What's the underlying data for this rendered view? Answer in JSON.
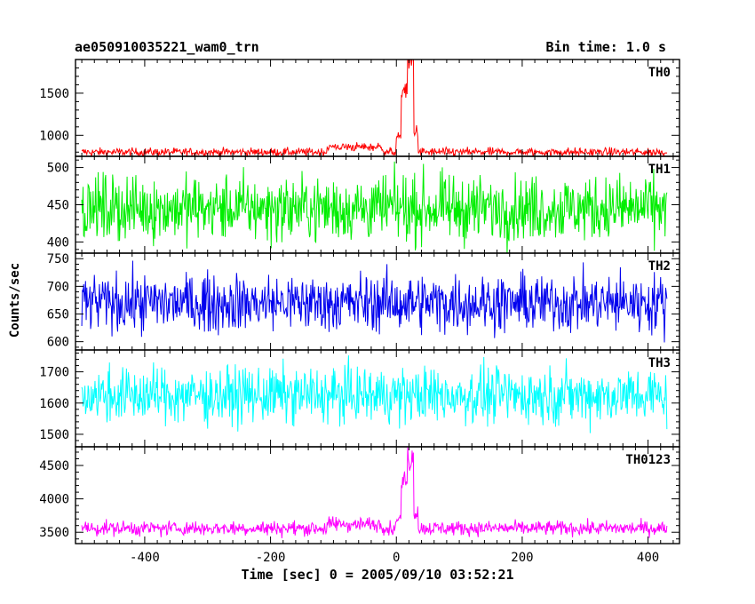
{
  "header": {
    "title_left": "ae050910035221_wam0_trn",
    "title_right": "Bin time: 1.0 s"
  },
  "axes": {
    "ylabel": "Counts/sec",
    "xlabel": "Time [sec] 0 = 2005/09/10 03:52:21"
  },
  "chart_data": {
    "type": "line",
    "title": "ae050910035221_wam0_trn",
    "subtitle": "Bin time: 1.0 s",
    "xlabel": "Time [sec] 0 = 2005/09/10 03:52:21",
    "ylabel": "Counts/sec",
    "xlim": [
      -510,
      450
    ],
    "xticks": [
      -400,
      -200,
      0,
      200,
      400
    ],
    "grid": false,
    "x_range": [
      -500,
      430
    ],
    "panels": [
      {
        "name": "TH0",
        "color": "#ff0000",
        "ylim": [
          750,
          1900
        ],
        "yticks": [
          1000,
          1500
        ],
        "baseline": 800,
        "noise": 25,
        "bursts": [
          [
            -110,
            -20,
            60
          ],
          [
            0,
            8,
            170
          ],
          [
            8,
            18,
            750
          ],
          [
            18,
            28,
            1100
          ],
          [
            28,
            35,
            250
          ]
        ]
      },
      {
        "name": "TH1",
        "color": "#00ee00",
        "ylim": [
          385,
          515
        ],
        "yticks": [
          400,
          450,
          500
        ],
        "baseline": 445,
        "noise": 22,
        "bursts": []
      },
      {
        "name": "TH2",
        "color": "#0000ee",
        "ylim": [
          585,
          760
        ],
        "yticks": [
          600,
          650,
          700,
          750
        ],
        "baseline": 670,
        "noise": 26,
        "bursts": []
      },
      {
        "name": "TH3",
        "color": "#00ffff",
        "ylim": [
          1460,
          1770
        ],
        "yticks": [
          1500,
          1600,
          1700
        ],
        "baseline": 1625,
        "noise": 45,
        "bursts": []
      },
      {
        "name": "TH0123",
        "color": "#ff00ff",
        "ylim": [
          3330,
          4780
        ],
        "yticks": [
          3500,
          4000,
          4500
        ],
        "baseline": 3560,
        "noise": 55,
        "bursts": [
          [
            -110,
            -20,
            60
          ],
          [
            0,
            8,
            150
          ],
          [
            8,
            18,
            700
          ],
          [
            18,
            28,
            1050
          ],
          [
            28,
            35,
            250
          ]
        ]
      }
    ]
  }
}
